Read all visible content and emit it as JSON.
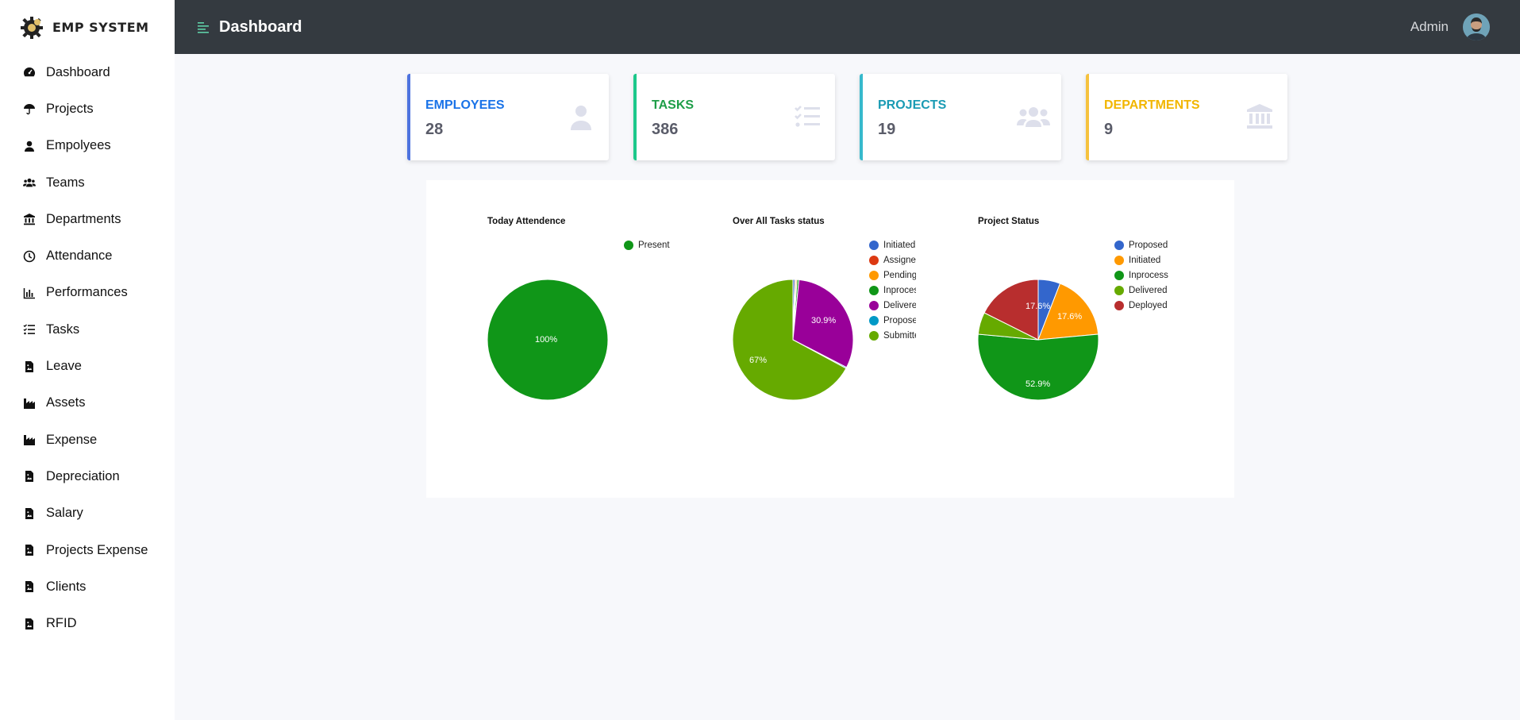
{
  "brand": {
    "name": "EMP SYSTEM",
    "logo_icon": "gear-logo-icon"
  },
  "sidebar": {
    "items": [
      {
        "label": "Dashboard",
        "icon": "tachometer-icon"
      },
      {
        "label": "Projects",
        "icon": "umbrella-icon"
      },
      {
        "label": "Empolyees",
        "icon": "user-icon"
      },
      {
        "label": "Teams",
        "icon": "users-icon"
      },
      {
        "label": "Departments",
        "icon": "university-icon"
      },
      {
        "label": "Attendance",
        "icon": "clock-icon"
      },
      {
        "label": "Performances",
        "icon": "bar-chart-icon"
      },
      {
        "label": "Tasks",
        "icon": "tasks-icon"
      },
      {
        "label": "Leave",
        "icon": "file-image-icon"
      },
      {
        "label": "Assets",
        "icon": "industry-icon"
      },
      {
        "label": "Expense",
        "icon": "industry-icon"
      },
      {
        "label": "Depreciation",
        "icon": "file-image-icon"
      },
      {
        "label": "Salary",
        "icon": "file-image-icon"
      },
      {
        "label": "Projects Expense",
        "icon": "file-image-icon"
      },
      {
        "label": "Clients",
        "icon": "file-image-icon"
      },
      {
        "label": "RFID",
        "icon": "file-image-icon"
      }
    ]
  },
  "topbar": {
    "title": "Dashboard",
    "user": "Admin",
    "menu_icon": "align-left-icon"
  },
  "cards": [
    {
      "label": "EMPLOYEES",
      "value": "28",
      "color": "#4e73df",
      "label_color": "#1a73e8",
      "icon": "user-icon"
    },
    {
      "label": "TASKS",
      "value": "386",
      "color": "#1cc88a",
      "label_color": "#1e9e48",
      "icon": "tasks-icon"
    },
    {
      "label": "PROJECTS",
      "value": "19",
      "color": "#36b9cc",
      "label_color": "#1a9bb4",
      "icon": "users-icon"
    },
    {
      "label": "DEPARTMENTS",
      "value": "9",
      "color": "#f6c23e",
      "label_color": "#f2b600",
      "icon": "university-icon"
    }
  ],
  "chart_data": [
    {
      "type": "pie",
      "title": "Today Attendence",
      "series": [
        {
          "name": "Present",
          "value": 100,
          "color": "#109618"
        }
      ],
      "slice_labels": [
        "100%"
      ],
      "legend_position": "right"
    },
    {
      "type": "pie",
      "title": "Over All Tasks status",
      "series": [
        {
          "name": "Initiated",
          "value": 0.5,
          "color": "#3366cc"
        },
        {
          "name": "Assigned",
          "value": 0.3,
          "color": "#dc3912"
        },
        {
          "name": "Pending",
          "value": 0.3,
          "color": "#ff9900"
        },
        {
          "name": "Inprocess",
          "value": 0.5,
          "color": "#109618"
        },
        {
          "name": "Delivered",
          "value": 30.9,
          "color": "#990099"
        },
        {
          "name": "Proposed",
          "value": 0.3,
          "color": "#0099c6"
        },
        {
          "name": "Submitted",
          "value": 67,
          "color": "#66aa00"
        }
      ],
      "legend_labels": [
        "Initiated",
        "Assigne",
        "Pending",
        "Inproces",
        "Delivere",
        "Propose",
        "Submitte"
      ],
      "slice_labels": [
        "30.9%",
        "67%"
      ],
      "legend_position": "right"
    },
    {
      "type": "pie",
      "title": "Project Status",
      "series": [
        {
          "name": "Proposed",
          "value": 5.9,
          "color": "#3366cc"
        },
        {
          "name": "Initiated",
          "value": 17.6,
          "color": "#ff9900"
        },
        {
          "name": "Inprocess",
          "value": 52.9,
          "color": "#109618"
        },
        {
          "name": "Delivered",
          "value": 5.9,
          "color": "#66aa00"
        },
        {
          "name": "Deployed",
          "value": 17.6,
          "color": "#b82e2e"
        }
      ],
      "slice_labels": [
        "17.6%",
        "52.9%",
        "17.6%"
      ],
      "legend_position": "right"
    }
  ]
}
